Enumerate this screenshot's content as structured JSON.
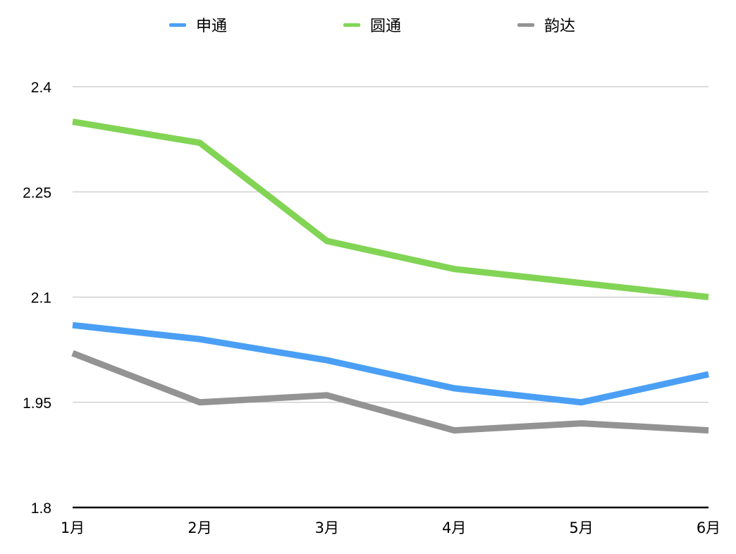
{
  "chart_data": {
    "type": "line",
    "title": "",
    "xlabel": "",
    "ylabel": "",
    "categories": [
      "1月",
      "2月",
      "3月",
      "4月",
      "5月",
      "6月"
    ],
    "series": [
      {
        "name": "申通",
        "color": "#4a9ff5",
        "values": [
          2.06,
          2.04,
          2.01,
          1.97,
          1.95,
          1.99
        ]
      },
      {
        "name": "圆通",
        "color": "#82d455",
        "values": [
          2.35,
          2.32,
          2.18,
          2.14,
          2.12,
          2.1
        ]
      },
      {
        "name": "韵达",
        "color": "#939393",
        "values": [
          2.02,
          1.95,
          1.96,
          1.91,
          1.92,
          1.91
        ]
      }
    ],
    "ylim": [
      1.8,
      2.4
    ],
    "yticks": [
      "1.8",
      "1.95",
      "2.1",
      "2.25",
      "2.4"
    ],
    "ytick_values": [
      1.8,
      1.95,
      2.1,
      2.25,
      2.4
    ],
    "grid": true,
    "legend_position": "top"
  },
  "legend": {
    "items": [
      {
        "label": "申通",
        "color": "#4a9ff5"
      },
      {
        "label": "圆通",
        "color": "#82d455"
      },
      {
        "label": "韵达",
        "color": "#939393"
      }
    ]
  }
}
